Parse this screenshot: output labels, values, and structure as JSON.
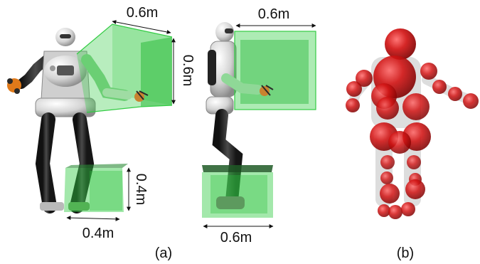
{
  "panel_a": {
    "caption": "(a)",
    "front_view": {
      "hand_box": {
        "width_label": "0.6m",
        "height_label": "0.6m"
      },
      "foot_box": {
        "height_label": "0.4m",
        "width_label": "0.4m"
      }
    },
    "side_view": {
      "hand_box": {
        "width_label": "0.6m"
      },
      "foot_box": {
        "width_label": "0.6m"
      }
    }
  },
  "panel_b": {
    "caption": "(b)"
  },
  "colors": {
    "workspace_green": "#33cc44",
    "collision_red": "#cc1111",
    "robot_white": "#d8d8d8",
    "robot_dark": "#2b2b2b",
    "text": "#111111"
  },
  "icons": [
    "robot-front-view",
    "robot-side-view",
    "collision-sphere-model"
  ]
}
